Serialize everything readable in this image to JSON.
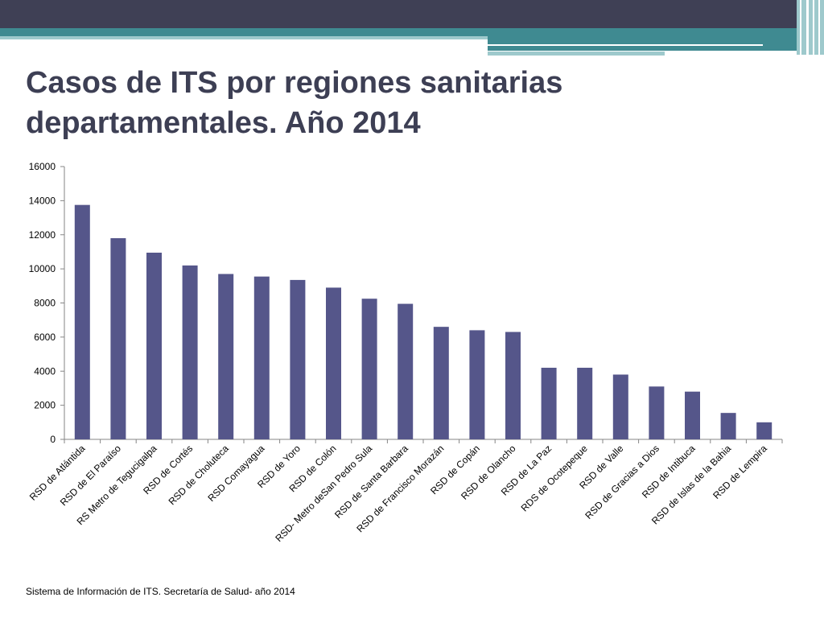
{
  "slide": {
    "title_line1": "Casos de ITS por regiones sanitarias",
    "title_line2": "departamentales. Año 2014",
    "source": "Sistema de Información de ITS. Secretaría de Salud- año 2014"
  },
  "theme": {
    "bar_color": "#55568a",
    "title_color": "#3d3f54",
    "header_dark": "#3f4055",
    "header_teal": "#3f8a91",
    "header_light_teal": "#9ec9cc"
  },
  "chart_data": {
    "type": "bar",
    "title": "",
    "xlabel": "",
    "ylabel": "",
    "ylim": [
      0,
      16000
    ],
    "yticks": [
      0,
      2000,
      4000,
      6000,
      8000,
      10000,
      12000,
      14000,
      16000
    ],
    "grid": false,
    "legend": "none",
    "categories": [
      "RSD de Atlántida",
      "RSD de El Paraíso",
      "RS Metro de Tegucigalpa",
      "RSD de Cortés",
      "RSD de Choluteca",
      "RSD Comayagua",
      "RSD de Yoro",
      "RSD de Colón",
      "RSD- Metro deSan Pedro Sula",
      "RSD de Santa Barbara",
      "RSD de Francisco Morazán",
      "RSD de Copán",
      "RSD de Olancho",
      "RSD de La Paz",
      "RDS de Ocotepeque",
      "RSD de Valle",
      "RSD de Gracias a Dios",
      "RSD de Intibuca",
      "RSD de Islas de la Bahia",
      "RSD de Lempira"
    ],
    "values": [
      13750,
      11800,
      10950,
      10200,
      9700,
      9550,
      9350,
      8900,
      8250,
      7950,
      6600,
      6400,
      6300,
      4200,
      4200,
      3800,
      3100,
      2800,
      1550,
      1000
    ]
  }
}
